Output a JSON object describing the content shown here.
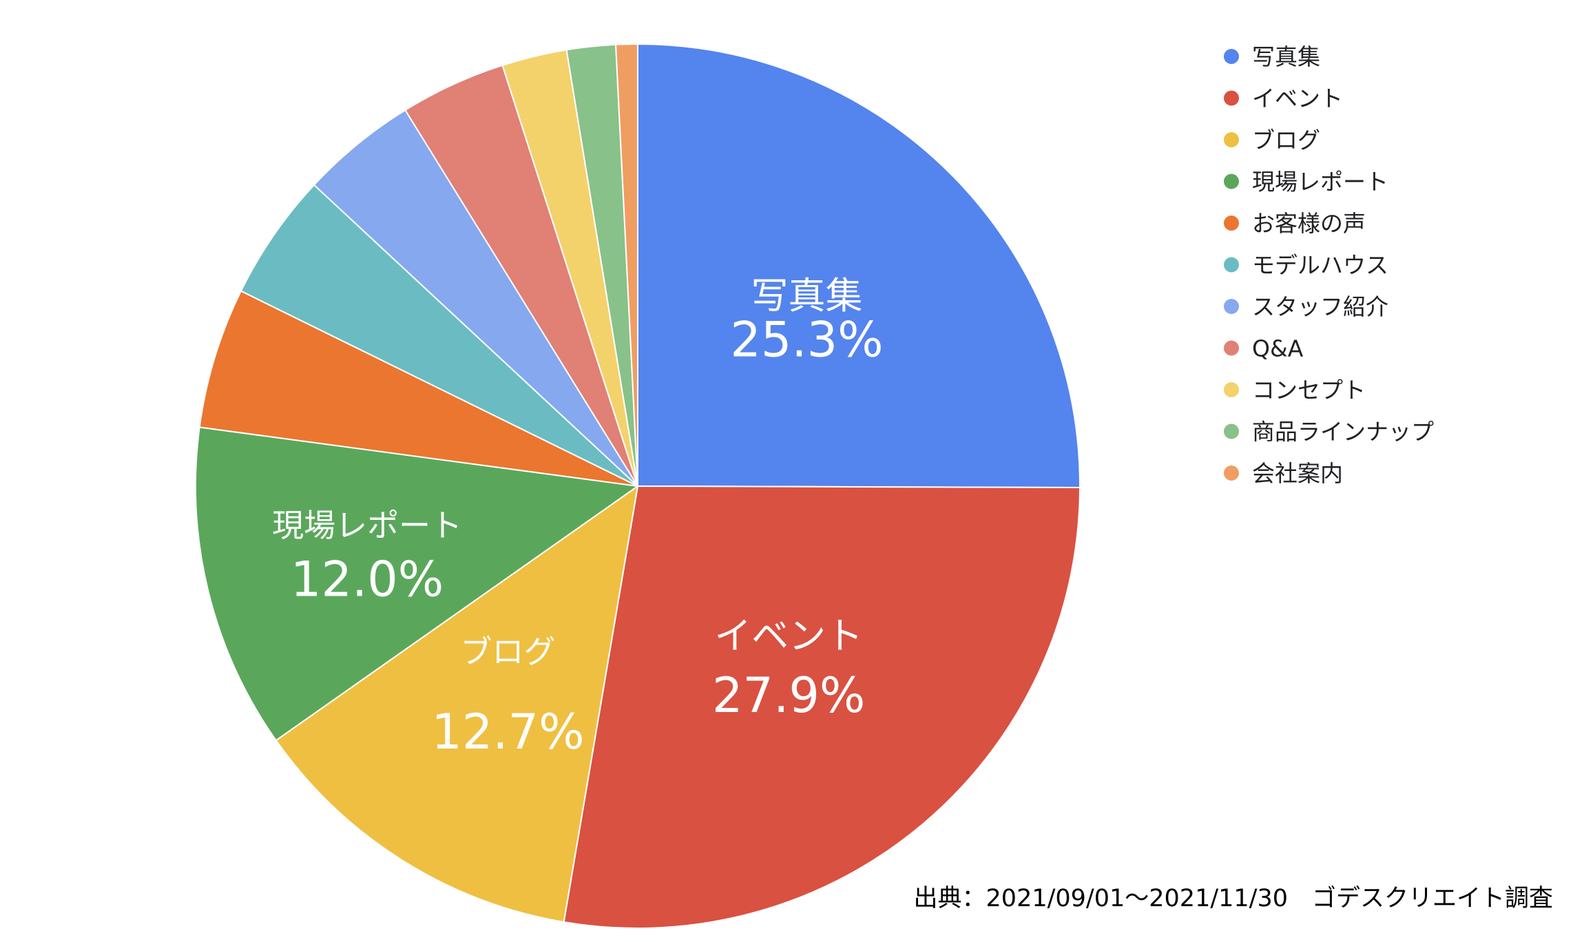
{
  "chart_data": {
    "type": "pie",
    "slices": [
      {
        "label": "写真集",
        "value": 25.3,
        "color": "#5484ED"
      },
      {
        "label": "イベント",
        "value": 27.9,
        "color": "#D95141"
      },
      {
        "label": "ブログ",
        "value": 12.7,
        "color": "#EFBF42"
      },
      {
        "label": "現場レポート",
        "value": 12.0,
        "color": "#5AA75C"
      },
      {
        "label": "お客様の声",
        "value": 5.2,
        "color": "#EB762F"
      },
      {
        "label": "モデルハウス",
        "value": 4.7,
        "color": "#6ABCC2"
      },
      {
        "label": "スタッフ紹介",
        "value": 4.3,
        "color": "#86A8EF"
      },
      {
        "label": "Q&A",
        "value": 3.9,
        "color": "#E18075"
      },
      {
        "label": "コンセプト",
        "value": 2.4,
        "color": "#F3D26C"
      },
      {
        "label": "商品ラインナップ",
        "value": 1.8,
        "color": "#88C18A"
      },
      {
        "label": "会社案内",
        "value": 0.8,
        "color": "#F09D62"
      }
    ],
    "data_labels": [
      {
        "name": "写真集",
        "value": "25.3%"
      },
      {
        "name": "イベント",
        "value": "27.9%"
      },
      {
        "name": "ブログ",
        "value": "12.7%"
      },
      {
        "name": "現場レポート",
        "value": "12.0%"
      }
    ],
    "legend_position": "right"
  },
  "source_note": "出典：2021/09/01〜2021/11/30　ゴデスクリエイト調査"
}
